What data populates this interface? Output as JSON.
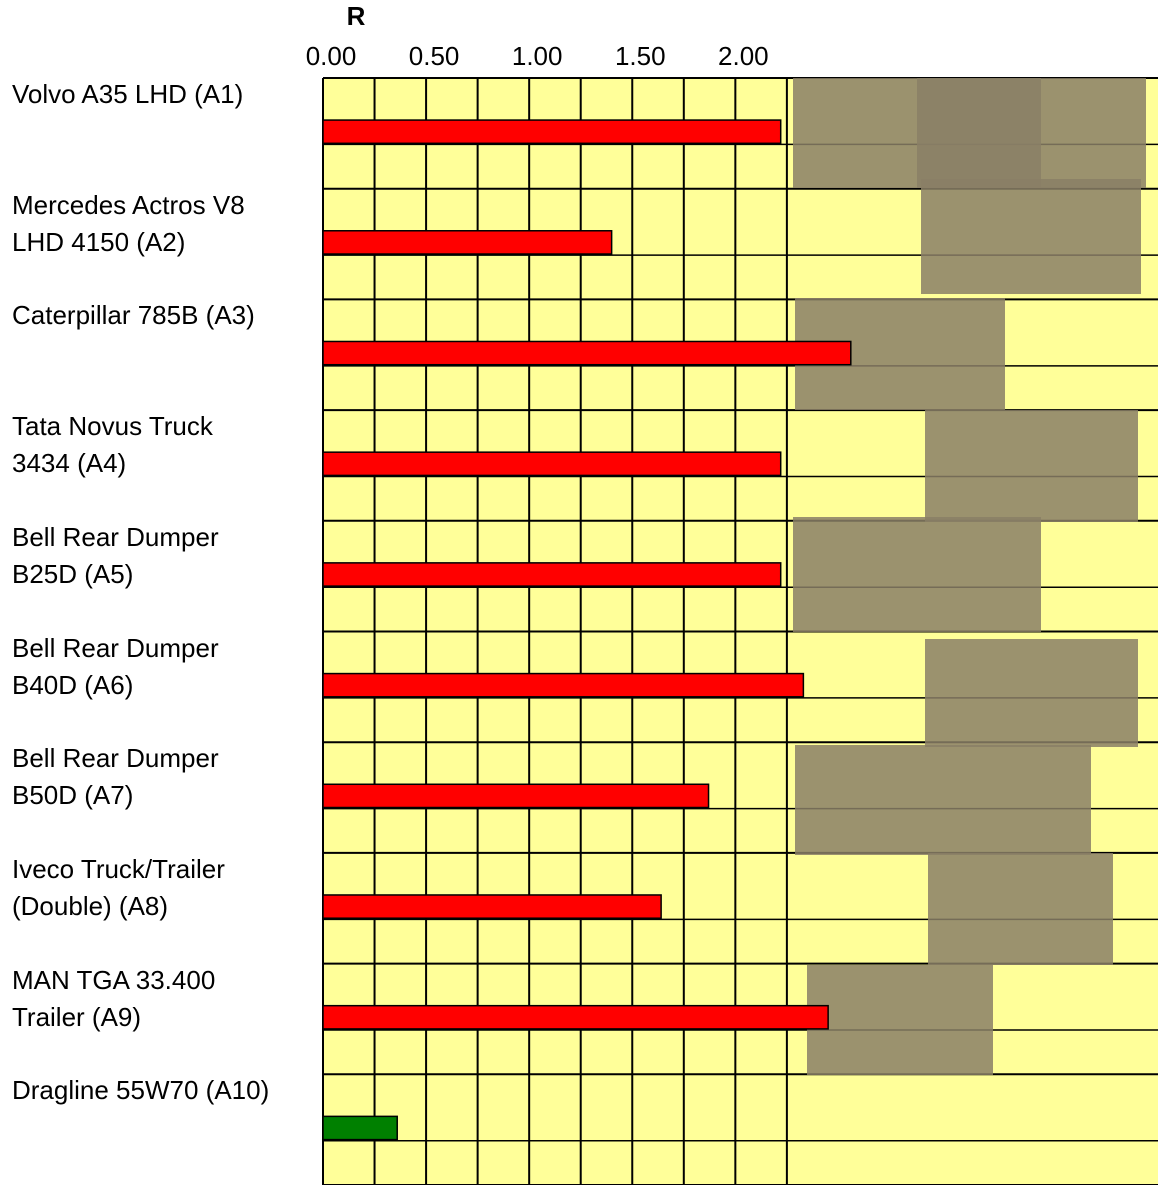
{
  "chart_data": {
    "type": "hbar",
    "title": "R",
    "categories": [
      "Volvo A35 LHD (A1)",
      "Mercedes Actros V8\nLHD 4150 (A2)",
      "Caterpillar 785B (A3)",
      "Tata Novus Truck\n3434 (A4)",
      "Bell Rear Dumper\nB25D (A5)",
      "Bell Rear Dumper\nB40D (A6)",
      "Bell Rear Dumper\nB50D (A7)",
      "Iveco Truck/Trailer\n(Double) (A8)",
      "MAN TGA 33.400\nTrailer (A9)",
      "Dragline 55W70 (A10)"
    ],
    "values": [
      2.22,
      1.4,
      2.56,
      2.22,
      2.22,
      2.33,
      1.87,
      1.64,
      2.45,
      0.36
    ],
    "colors": [
      "#ff0000",
      "#ff0000",
      "#ff0000",
      "#ff0000",
      "#ff0000",
      "#ff0000",
      "#ff0000",
      "#ff0000",
      "#ff0000",
      "#008000"
    ],
    "xlim": [
      0,
      4.05
    ],
    "xticks": [
      {
        "value": 0,
        "label": "0.00"
      },
      {
        "value": 0.5,
        "label": "0.50"
      },
      {
        "value": 1,
        "label": "1.00"
      },
      {
        "value": 1.5,
        "label": "1.50"
      },
      {
        "value": 2,
        "label": "2.00"
      }
    ],
    "grid": true
  }
}
